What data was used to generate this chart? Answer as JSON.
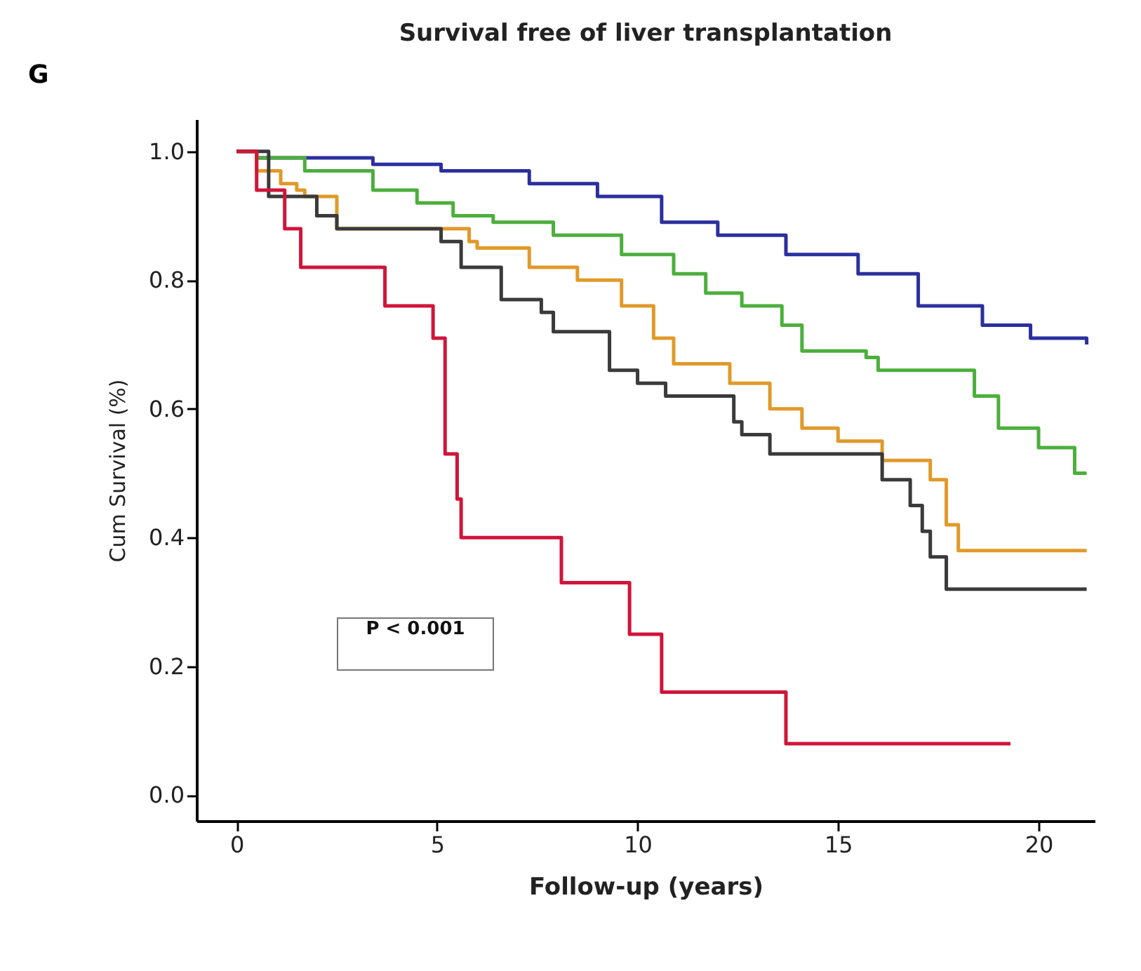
{
  "chart_data": {
    "type": "step",
    "title": "Survival free of liver transplantation",
    "xlabel": "Follow-up (years)",
    "ylabel": "Cum Survival (%)",
    "annotations": [
      "G",
      "P < 0.001"
    ],
    "xlim": [
      -1,
      21.4
    ],
    "xticks": [
      0,
      5,
      10,
      15,
      20
    ],
    "ylim": [
      -0.04,
      1.05
    ],
    "yticks": [
      {
        "value": 0,
        "label": "0.0"
      },
      {
        "value": 0.2,
        "label": "0.2"
      },
      {
        "value": 0.4,
        "label": "0.4"
      },
      {
        "value": 0.6,
        "label": "0.6"
      },
      {
        "value": 0.8,
        "label": "0.8"
      },
      {
        "value": 1,
        "label": "1.0"
      }
    ],
    "grid": false,
    "legend": false,
    "series": [
      {
        "color": "#2b2f9e",
        "x": [
          0,
          0.5,
          3.4,
          5.1,
          7.3,
          9.0,
          10.6,
          12.0,
          13.7,
          15.5,
          17.0,
          18.6,
          19.8,
          21.2
        ],
        "values": [
          1.0,
          0.99,
          0.98,
          0.97,
          0.95,
          0.93,
          0.89,
          0.87,
          0.84,
          0.81,
          0.76,
          0.73,
          0.71,
          0.7
        ]
      },
      {
        "color": "#4caf3c",
        "x": [
          0,
          0.5,
          1.7,
          3.4,
          4.5,
          5.4,
          6.4,
          7.9,
          9.6,
          10.9,
          11.7,
          12.6,
          13.6,
          14.1,
          15.7,
          16.0,
          18.4,
          19.0,
          20.0,
          20.9,
          21.2
        ],
        "values": [
          1.0,
          0.99,
          0.97,
          0.94,
          0.92,
          0.9,
          0.89,
          0.87,
          0.84,
          0.81,
          0.78,
          0.76,
          0.73,
          0.69,
          0.68,
          0.66,
          0.62,
          0.57,
          0.54,
          0.5,
          0.5
        ]
      },
      {
        "color": "#e09a2a",
        "x": [
          0,
          0.5,
          1.1,
          1.5,
          1.7,
          2.5,
          5.8,
          6.0,
          7.3,
          8.5,
          9.6,
          10.4,
          10.9,
          12.3,
          13.3,
          14.1,
          15.0,
          16.1,
          17.3,
          17.7,
          18.0,
          21.2
        ],
        "values": [
          1.0,
          0.97,
          0.95,
          0.94,
          0.93,
          0.88,
          0.86,
          0.85,
          0.82,
          0.8,
          0.76,
          0.71,
          0.67,
          0.64,
          0.6,
          0.57,
          0.55,
          0.52,
          0.49,
          0.42,
          0.38,
          0.38
        ]
      },
      {
        "color": "#3a3a3a",
        "x": [
          0,
          0.8,
          2.0,
          2.5,
          5.1,
          5.6,
          6.6,
          7.6,
          7.9,
          9.3,
          10.0,
          10.7,
          12.4,
          12.6,
          13.3,
          16.1,
          16.8,
          17.1,
          17.3,
          17.7,
          21.2
        ],
        "values": [
          1.0,
          0.93,
          0.9,
          0.88,
          0.86,
          0.82,
          0.77,
          0.75,
          0.72,
          0.66,
          0.64,
          0.62,
          0.58,
          0.56,
          0.53,
          0.49,
          0.45,
          0.41,
          0.37,
          0.32,
          0.32
        ]
      },
      {
        "color": "#d0153a",
        "x": [
          0,
          0.5,
          1.2,
          1.6,
          3.7,
          4.9,
          5.2,
          5.5,
          5.6,
          8.1,
          9.8,
          10.6,
          13.7,
          19.3
        ],
        "values": [
          1.0,
          0.94,
          0.88,
          0.82,
          0.76,
          0.71,
          0.53,
          0.46,
          0.4,
          0.33,
          0.25,
          0.16,
          0.08,
          0.08
        ]
      }
    ]
  }
}
